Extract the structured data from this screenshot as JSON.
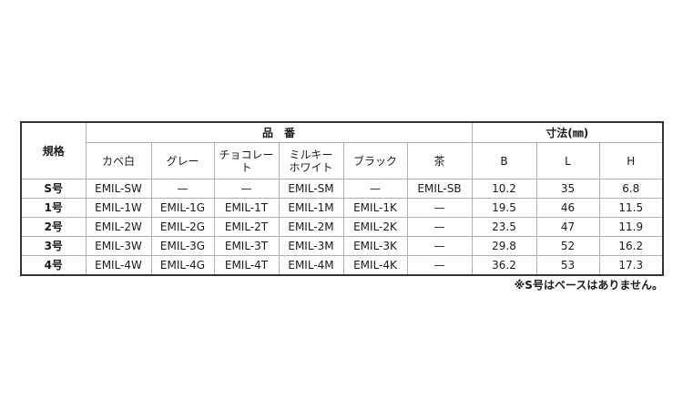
{
  "table": {
    "size_header": "規格",
    "part_group_header": "品　番",
    "dim_group_header": "寸法(㎜)",
    "color_columns": [
      "カベ白",
      "グレー",
      "チョコレート",
      "ミルキー\nホワイト",
      "ブラック",
      "茶"
    ],
    "dim_columns": [
      "B",
      "L",
      "H"
    ],
    "rows": [
      [
        "S号",
        "EMIL-SW",
        "—",
        "—",
        "EMIL-SM",
        "—",
        "EMIL-SB",
        "10.2",
        "35",
        "6.8"
      ],
      [
        "1号",
        "EMIL-1W",
        "EMIL-1G",
        "EMIL-1T",
        "EMIL-1M",
        "EMIL-1K",
        "—",
        "19.5",
        "46",
        "11.5"
      ],
      [
        "2号",
        "EMIL-2W",
        "EMIL-2G",
        "EMIL-2T",
        "EMIL-2M",
        "EMIL-2K",
        "—",
        "23.5",
        "47",
        "11.9"
      ],
      [
        "3号",
        "EMIL-3W",
        "EMIL-3G",
        "EMIL-3T",
        "EMIL-3M",
        "EMIL-3K",
        "—",
        "29.8",
        "52",
        "16.2"
      ],
      [
        "4号",
        "EMIL-4W",
        "EMIL-4G",
        "EMIL-4T",
        "EMIL-4M",
        "EMIL-4K",
        "—",
        "36.2",
        "53",
        "17.3"
      ]
    ]
  },
  "note": "※S号はベースはありません。"
}
